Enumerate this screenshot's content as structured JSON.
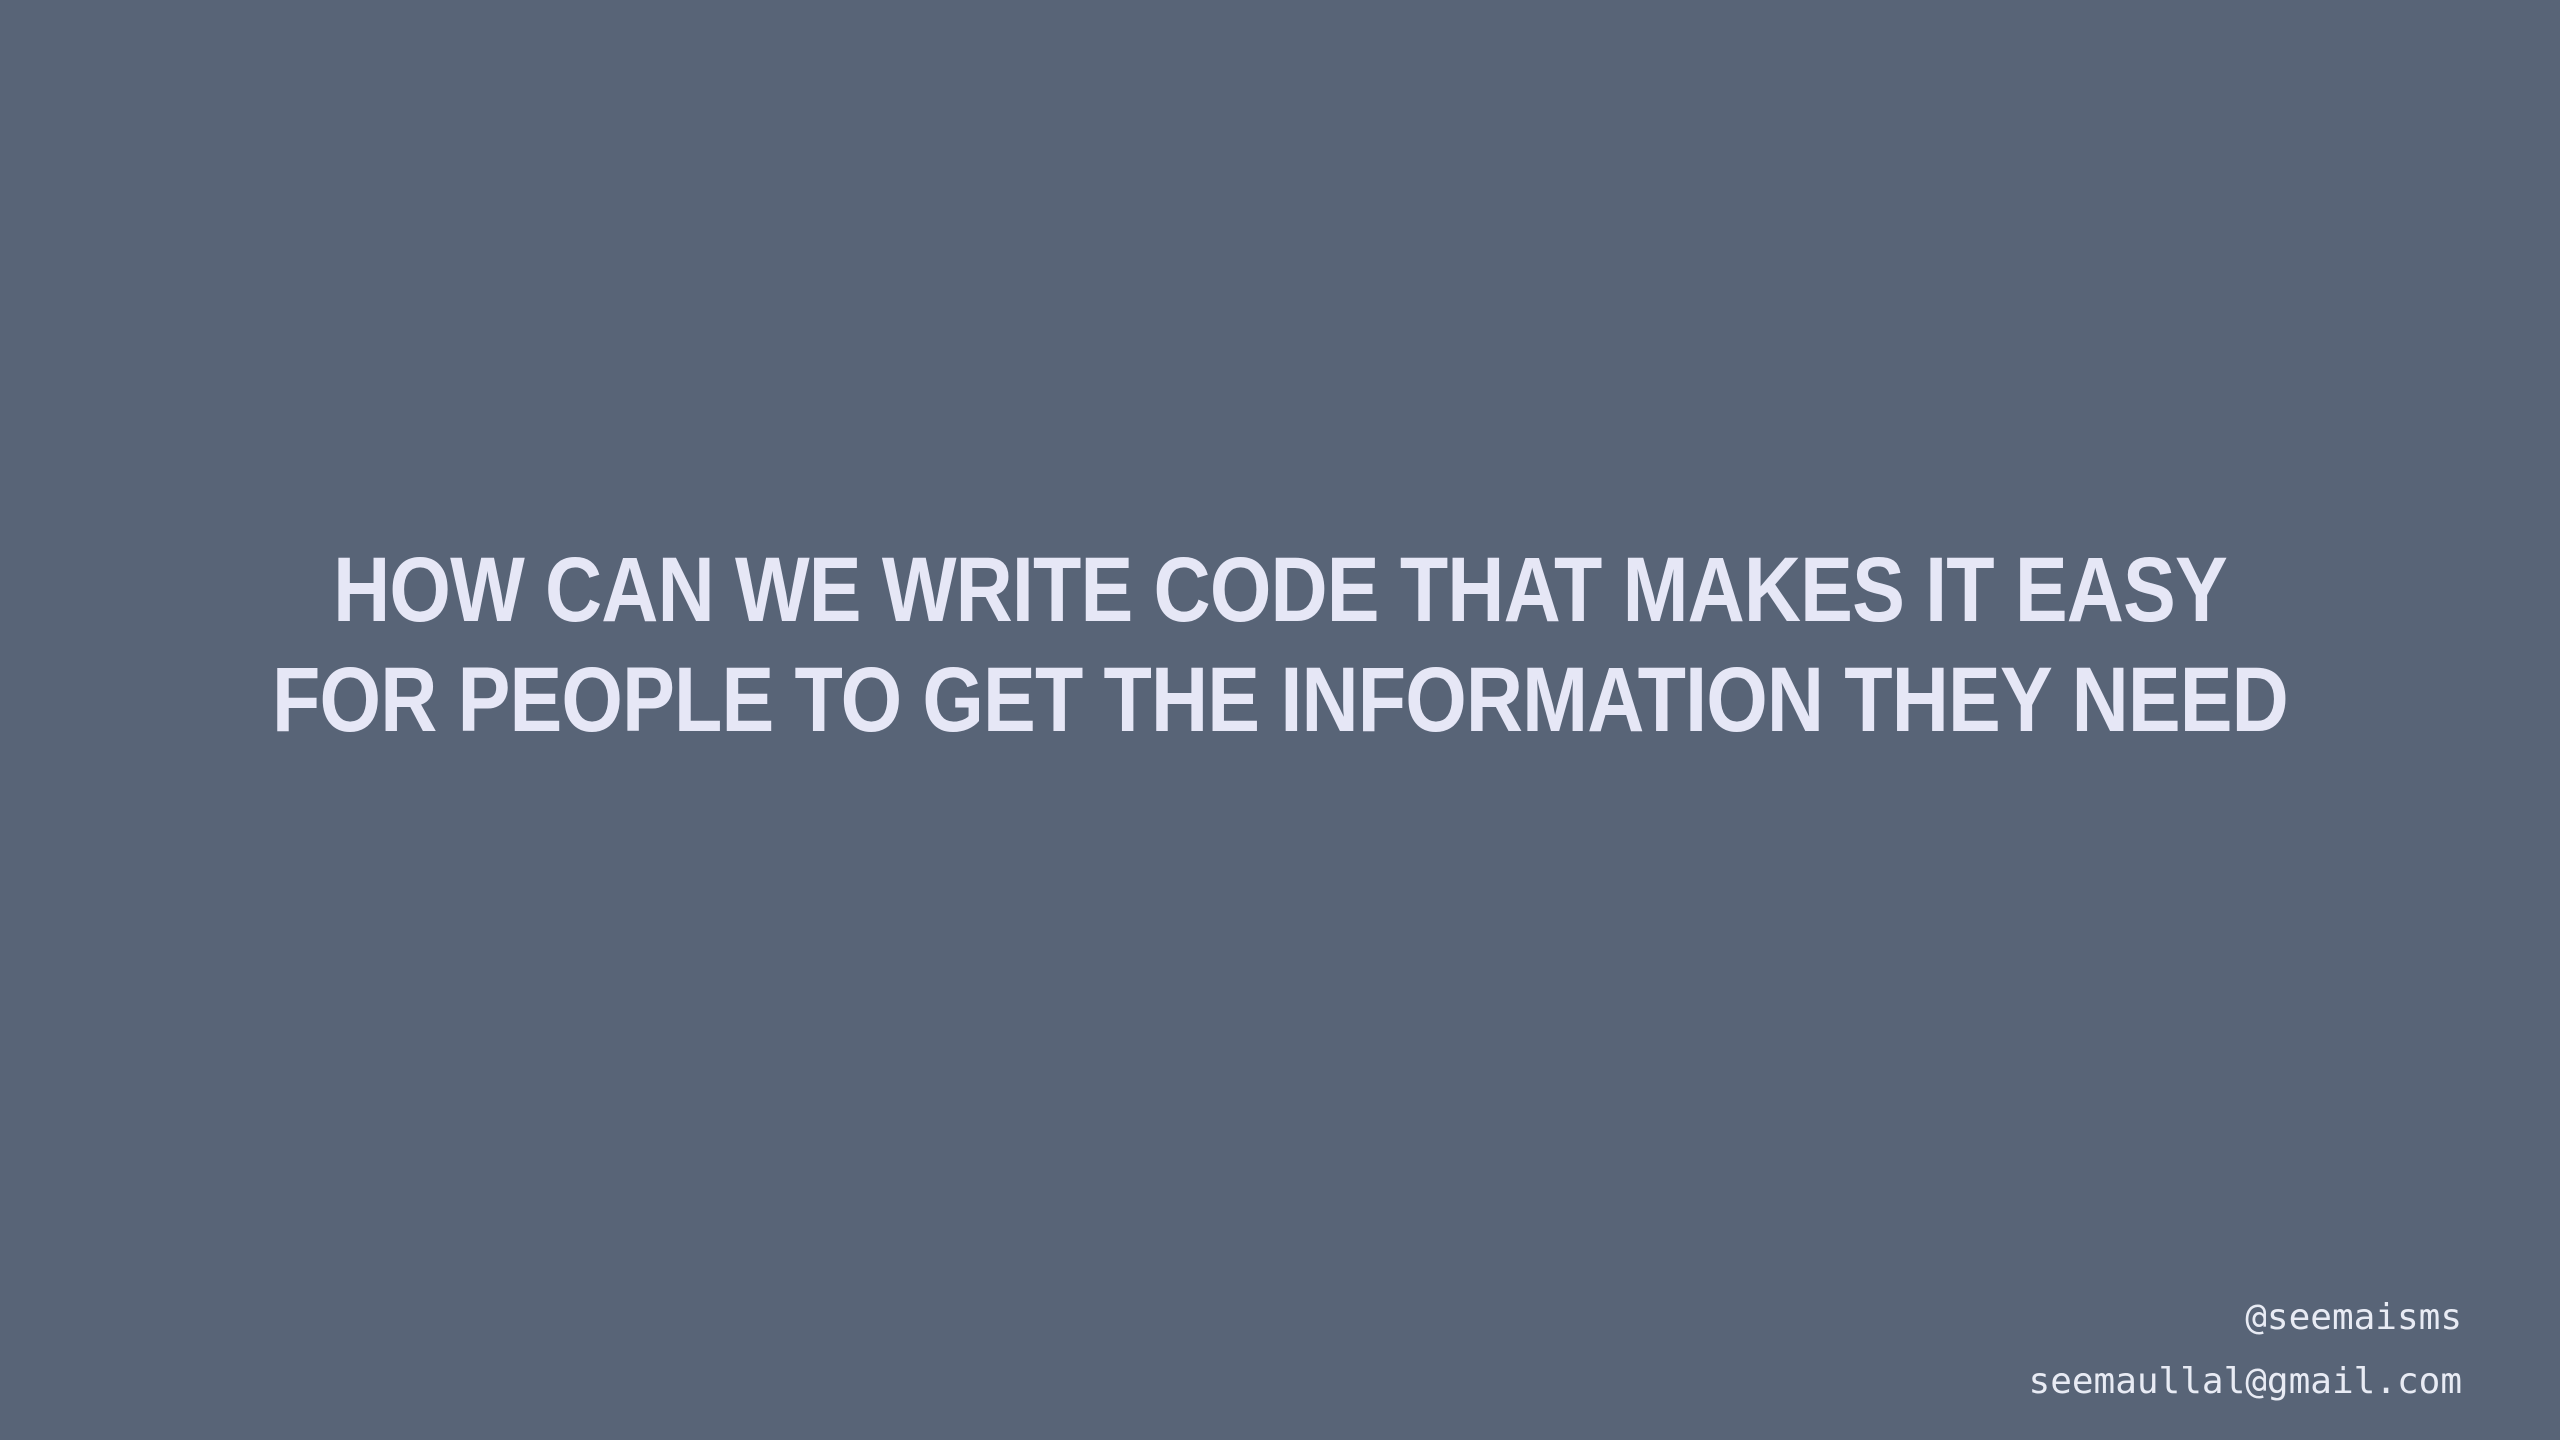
{
  "slide": {
    "background_color": "#586477",
    "text_color": "#e6e7f6",
    "headline": {
      "line1": "HOW CAN WE WRITE CODE THAT MAKES IT EASY",
      "line2": "FOR PEOPLE TO GET THE INFORMATION THEY NEED"
    },
    "contact": {
      "handle": "@seemaisms",
      "email": "seemaullal@gmail.com"
    }
  }
}
